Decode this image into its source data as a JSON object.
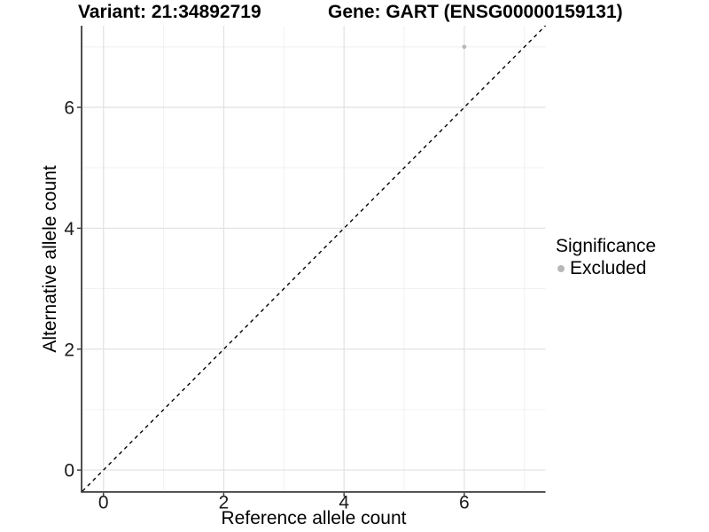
{
  "titles": {
    "variant": "Variant: 21:34892719",
    "gene": "Gene: GART (ENSG00000159131)"
  },
  "chart_data": {
    "type": "scatter",
    "title_left": "Variant: 21:34892719",
    "title_right": "Gene: GART (ENSG00000159131)",
    "xlabel": "Reference allele count",
    "ylabel": "Alternative allele count",
    "xlim": [
      -0.35,
      7.35
    ],
    "ylim": [
      -0.35,
      7.35
    ],
    "x_major_ticks": [
      0,
      2,
      4,
      6
    ],
    "y_major_ticks": [
      0,
      2,
      4,
      6
    ],
    "x_minor_gridlines": [
      1,
      3,
      5,
      7
    ],
    "y_minor_gridlines": [
      1,
      3,
      5,
      7
    ],
    "grid": true,
    "series": [
      {
        "name": "Excluded",
        "color": "#b8b8b8",
        "points": [
          {
            "x": 6,
            "y": 7
          }
        ]
      }
    ],
    "reference_line": {
      "type": "identity",
      "slope": 1,
      "intercept": 0,
      "style": "dashed",
      "color": "#000000"
    },
    "legend": {
      "title": "Significance",
      "position": "right",
      "items": [
        {
          "label": "Excluded",
          "color": "#b8b8b8"
        }
      ]
    },
    "colors": {
      "axis_line": "#3c3c3c",
      "tick_mark": "#333333",
      "tick_label": "#1a1a1a",
      "major_gridline": "#e3e3e3",
      "minor_gridline": "#f0f0f0",
      "background": "#ffffff"
    }
  }
}
